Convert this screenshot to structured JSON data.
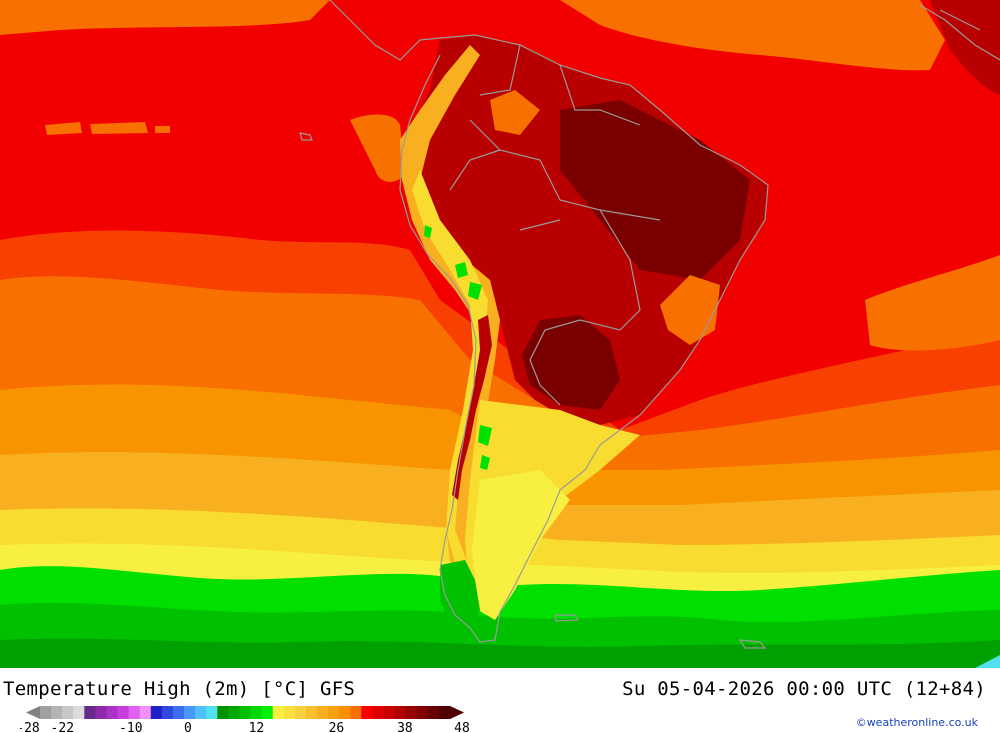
{
  "title": "Temperature High (2m) [°C] GFS",
  "datetime": "Su 05-04-2026 00:00 UTC (12+84)",
  "credit": "©weatheronline.co.uk",
  "legend": {
    "tick_labels": [
      "-28",
      "-22",
      "-10",
      "0",
      "12",
      "26",
      "38",
      "48"
    ],
    "tick_values": [
      -28,
      -22,
      -10,
      0,
      12,
      26,
      38,
      48
    ],
    "min": -28,
    "max": 48,
    "colors": [
      "#a0a0a0",
      "#b4b4b4",
      "#c8c8c8",
      "#dcdcdc",
      "#6a2a8c",
      "#8c2aa8",
      "#aa32c8",
      "#c83ce0",
      "#e060f0",
      "#f090f8",
      "#2020c8",
      "#3048e0",
      "#3c6ef0",
      "#4898f8",
      "#50c0f8",
      "#50e0f0",
      "#009000",
      "#00a800",
      "#00c000",
      "#00d800",
      "#00f000",
      "#f8f040",
      "#f8e040",
      "#f8d040",
      "#f8c030",
      "#f8b020",
      "#f8a010",
      "#f89000",
      "#f87000",
      "#f80000",
      "#e00000",
      "#c80000",
      "#b00000",
      "#980000",
      "#800000",
      "#680000",
      "#500000"
    ]
  },
  "map_colors": {
    "hot_dark": "#7a0000",
    "hot": "#b80000",
    "red": "#f20000",
    "red_orange": "#f84000",
    "orange": "#f87000",
    "orange_light": "#f89400",
    "amber": "#f8b020",
    "yellow": "#f8dc30",
    "yellow_light": "#f8f040",
    "green_light": "#00e000",
    "green": "#00c000",
    "green_dark": "#00a000",
    "cyan": "#50e0f0"
  }
}
